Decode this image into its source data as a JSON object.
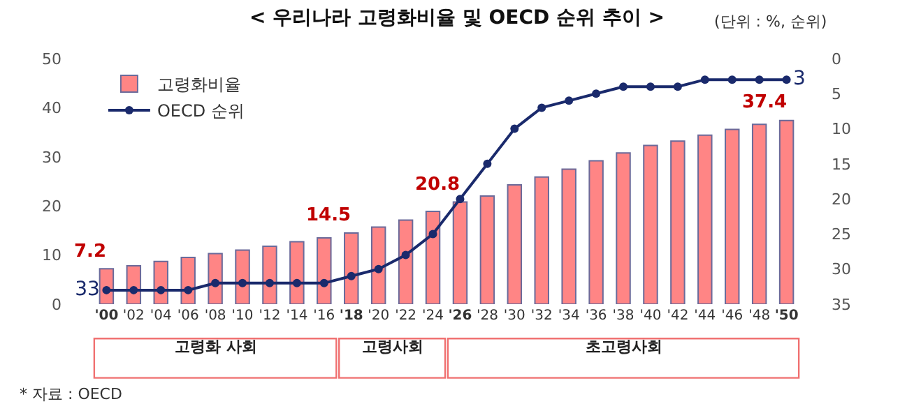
{
  "chart_data": {
    "type": "bar",
    "title": "< 우리나라 고령화비율 및 OECD 순위 추이 >",
    "categories": [
      "'00",
      "'02",
      "'04",
      "'06",
      "'08",
      "'10",
      "'12",
      "'14",
      "'16",
      "'18",
      "'20",
      "'22",
      "'24",
      "'26",
      "'28",
      "'30",
      "'32",
      "'34",
      "'36",
      "'38",
      "'40",
      "'42",
      "'44",
      "'46",
      "'48",
      "'50"
    ],
    "series": [
      {
        "name": "고령화비율",
        "color": "#ff8585",
        "values": [
          7.2,
          7.8,
          8.7,
          9.5,
          10.3,
          11.0,
          11.8,
          12.7,
          13.5,
          14.5,
          15.7,
          17.1,
          18.9,
          20.8,
          22.0,
          24.3,
          25.9,
          27.5,
          29.2,
          30.8,
          32.3,
          33.2,
          34.4,
          35.6,
          36.6,
          37.4
        ],
        "value_labels": [
          "7.2",
          null,
          null,
          null,
          null,
          null,
          null,
          null,
          null,
          "14.5",
          null,
          null,
          null,
          "20.8",
          null,
          null,
          null,
          null,
          null,
          null,
          null,
          null,
          null,
          null,
          null,
          "37.4"
        ]
      },
      {
        "name": "OECD 순위",
        "type": "line",
        "axis": "y2",
        "color": "#1a2a6c",
        "values": [
          33,
          33,
          33,
          33,
          32,
          32,
          32,
          32,
          32,
          31,
          30,
          28,
          25,
          20,
          15,
          10,
          7,
          6,
          5,
          4,
          4,
          4,
          3,
          3,
          3,
          3
        ],
        "value_labels": [
          "33",
          null,
          null,
          null,
          null,
          null,
          null,
          null,
          null,
          null,
          null,
          null,
          null,
          null,
          null,
          null,
          null,
          null,
          null,
          null,
          null,
          null,
          null,
          null,
          null,
          "3"
        ]
      }
    ],
    "ylim": [
      0,
      50
    ],
    "yticks": [
      0,
      10,
      20,
      30,
      40,
      50
    ],
    "y2lim": [
      35,
      0
    ],
    "y2ticks": [
      0,
      5,
      10,
      15,
      20,
      25,
      30,
      35
    ],
    "annotations": [
      "(단위 : %, 순위)",
      "* 자료 : OECD",
      "고령화 사회",
      "고령사회",
      "초고령사회"
    ],
    "legend": "top left",
    "marker": "circle",
    "line_style": "solid"
  }
}
